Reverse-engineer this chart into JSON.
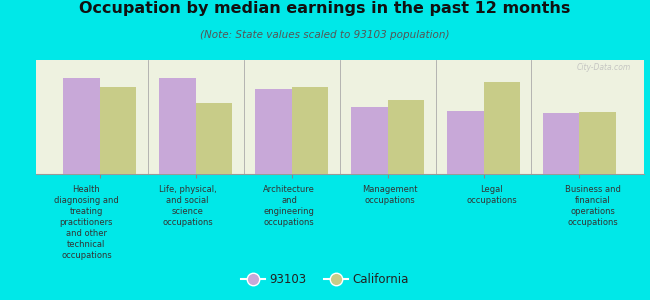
{
  "title": "Occupation by median earnings in the past 12 months",
  "subtitle": "(Note: State values scaled to 93103 population)",
  "background_color": "#00e8e8",
  "plot_bg_color": "#eef2e0",
  "plot_bg_top_color": "#f8faf0",
  "categories": [
    "Health\ndiagnosing and\ntreating\npractitioners\nand other\ntechnical\noccupations",
    "Life, physical,\nand social\nscience\noccupations",
    "Architecture\nand\nengineering\noccupations",
    "Management\noccupations",
    "Legal\noccupations",
    "Business and\nfinancial\noperations\noccupations"
  ],
  "values_93103": [
    0.88,
    0.88,
    0.78,
    0.62,
    0.58,
    0.56
  ],
  "values_california": [
    0.8,
    0.65,
    0.8,
    0.68,
    0.85,
    0.57
  ],
  "color_93103": "#c8a8d8",
  "color_california": "#c8cc88",
  "legend_labels": [
    "93103",
    "California"
  ],
  "bar_width": 0.38,
  "watermark": "City-Data.com"
}
